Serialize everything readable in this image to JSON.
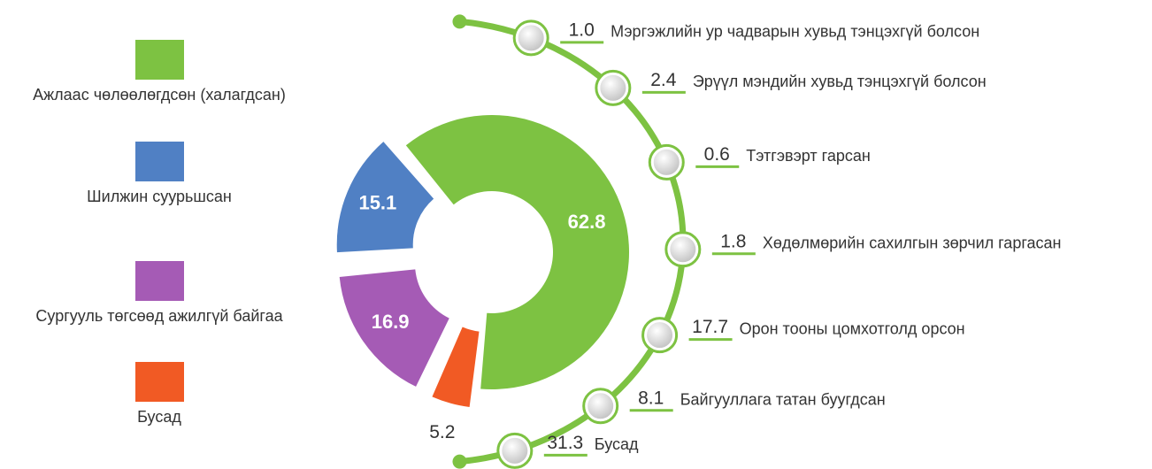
{
  "chart_data": [
    {
      "type": "pie",
      "donut": true,
      "categories": [
        "Ажлаас чөлөөлөгдсөн (халагдсан)",
        "Шилжин суурьшсан",
        "Сургууль төгсөөд ажилгүй байгаа",
        "Бусад"
      ],
      "values": [
        62.8,
        15.1,
        16.9,
        5.2
      ],
      "colors": [
        "#7dc242",
        "#5080c4",
        "#a55bb5",
        "#f15a24"
      ]
    },
    {
      "type": "breakdown",
      "color": "#7dc242",
      "categories": [
        "Мэргэжлийн ур чадварын хувьд тэнцэхгүй болсон",
        "Эрүүл мэндийн хувьд тэнцэхгүй болсон",
        "Тэтгэвэрт гарсан",
        "Хөдөлмөрийн сахилгын зөрчил гаргасан",
        "Орон тооны цомхотголд орсон",
        "Байгууллага татан буугдсан",
        "Бусад"
      ],
      "values": [
        1,
        2.4,
        0.6,
        1.8,
        17.7,
        8.1,
        31.3
      ],
      "value_labels": [
        "1.0",
        "2.4",
        "0.6",
        "1.8",
        "17.7",
        "8.1",
        "31.3"
      ]
    }
  ]
}
